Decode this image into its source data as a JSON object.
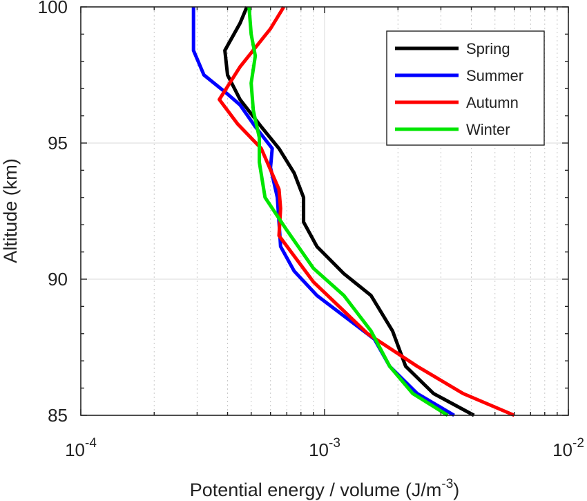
{
  "chart_data": {
    "type": "line",
    "title": "",
    "xlabel": "Potential energy / volume (J/m",
    "xlabel_sup": "-3",
    "xlabel_close": ")",
    "ylabel": "Altitude (km)",
    "xscale": "log",
    "xlim": [
      0.0001,
      0.01
    ],
    "ylim": [
      85,
      100
    ],
    "x_ticks": [
      {
        "value": 0.0001,
        "base": "10",
        "exp": "-4"
      },
      {
        "value": 0.001,
        "base": "10",
        "exp": "-3"
      },
      {
        "value": 0.01,
        "base": "10",
        "exp": "-2"
      }
    ],
    "y_ticks": [
      "85",
      "90",
      "95",
      "100"
    ],
    "grid": true,
    "legend_position": "top-right",
    "series": [
      {
        "name": "Spring",
        "color": "#000000",
        "points": [
          [
            0.00048,
            100
          ],
          [
            0.00045,
            99.4
          ],
          [
            0.00039,
            98.4
          ],
          [
            0.0004,
            97.5
          ],
          [
            0.00045,
            96.6
          ],
          [
            0.00055,
            95.6
          ],
          [
            0.00065,
            94.8
          ],
          [
            0.00075,
            93.9
          ],
          [
            0.00082,
            93.0
          ],
          [
            0.00082,
            92.1
          ],
          [
            0.00093,
            91.2
          ],
          [
            0.0012,
            90.2
          ],
          [
            0.00155,
            89.4
          ],
          [
            0.0019,
            88.1
          ],
          [
            0.00215,
            86.8
          ],
          [
            0.0028,
            85.8
          ],
          [
            0.0041,
            85.0
          ]
        ]
      },
      {
        "name": "Summer",
        "color": "#0000ff",
        "points": [
          [
            0.00029,
            100
          ],
          [
            0.00029,
            99.0
          ],
          [
            0.00029,
            98.4
          ],
          [
            0.00032,
            97.5
          ],
          [
            0.0004,
            96.8
          ],
          [
            0.00045,
            96.4
          ],
          [
            0.00052,
            95.6
          ],
          [
            0.00061,
            94.8
          ],
          [
            0.0006,
            94.1
          ],
          [
            0.00064,
            93.0
          ],
          [
            0.00065,
            92.1
          ],
          [
            0.00066,
            91.2
          ],
          [
            0.00075,
            90.3
          ],
          [
            0.00093,
            89.4
          ],
          [
            0.0016,
            87.8
          ],
          [
            0.00185,
            86.8
          ],
          [
            0.0024,
            85.8
          ],
          [
            0.0034,
            85.0
          ]
        ]
      },
      {
        "name": "Autumn",
        "color": "#ff0000",
        "points": [
          [
            0.00068,
            100
          ],
          [
            0.0006,
            99.2
          ],
          [
            0.00045,
            97.8
          ],
          [
            0.00037,
            96.6
          ],
          [
            0.00044,
            95.7
          ],
          [
            0.00055,
            94.8
          ],
          [
            0.00065,
            93.3
          ],
          [
            0.00066,
            92.6
          ],
          [
            0.00065,
            91.6
          ],
          [
            0.0009,
            89.9
          ],
          [
            0.0015,
            88.0
          ],
          [
            0.0024,
            86.8
          ],
          [
            0.0037,
            85.8
          ],
          [
            0.006,
            85.0
          ]
        ]
      },
      {
        "name": "Winter",
        "color": "#00e600",
        "points": [
          [
            0.00049,
            100
          ],
          [
            0.0005,
            99.0
          ],
          [
            0.00052,
            98.2
          ],
          [
            0.0005,
            97.2
          ],
          [
            0.00051,
            96.2
          ],
          [
            0.00054,
            95.2
          ],
          [
            0.00054,
            94.3
          ],
          [
            0.00057,
            93.0
          ],
          [
            0.0007,
            91.8
          ],
          [
            0.0009,
            90.4
          ],
          [
            0.0012,
            89.4
          ],
          [
            0.00155,
            88.1
          ],
          [
            0.00185,
            86.8
          ],
          [
            0.0023,
            85.8
          ],
          [
            0.0032,
            85.0
          ]
        ]
      }
    ]
  }
}
